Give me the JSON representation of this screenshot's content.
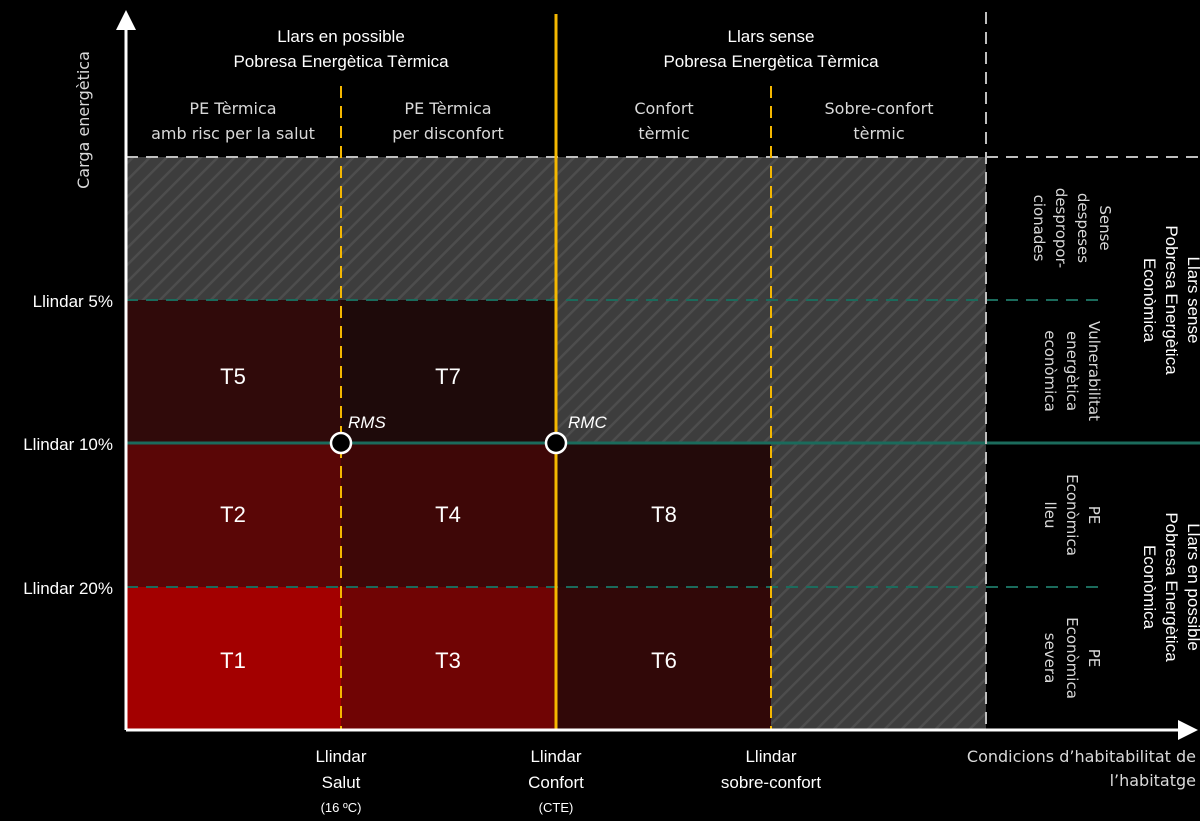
{
  "y_axis_label": "Carga energètica",
  "x_axis_label": [
    "Condicions d’habitabilitat de",
    "l’habitatge"
  ],
  "top_headers": {
    "thermal_poverty": [
      "Llars en possible",
      "Pobresa Energètica Tèrmica"
    ],
    "no_thermal_poverty": [
      "Llars sense",
      "Pobresa Energètica Tèrmica"
    ]
  },
  "column_headers": [
    [
      "PE Tèrmica",
      "amb risc per la salut"
    ],
    [
      "PE Tèrmica",
      "per disconfort"
    ],
    [
      "Confort",
      "tèrmic"
    ],
    [
      "Sobre-confort",
      "tèrmic"
    ]
  ],
  "thresholds_y": [
    "Llindar 5%",
    "Llindar 10%",
    "Llindar 20%"
  ],
  "thresholds_x": [
    [
      "Llindar",
      "Salut",
      "(16 ºC)"
    ],
    [
      "Llindar",
      "Confort",
      "(CTE)"
    ],
    [
      "Llindar",
      "sobre-confort"
    ]
  ],
  "cells": [
    {
      "label": "T5",
      "color": "#300a0a"
    },
    {
      "label": "T7",
      "color": "#1e0a0a"
    },
    {
      "label": "T2",
      "color": "#5a0606"
    },
    {
      "label": "T4",
      "color": "#3e0707"
    },
    {
      "label": "T8",
      "color": "#230a0a"
    },
    {
      "label": "T1",
      "color": "#a30000"
    },
    {
      "label": "T3",
      "color": "#700404"
    },
    {
      "label": "T6",
      "color": "#310808"
    }
  ],
  "points": [
    "RMS",
    "RMC"
  ],
  "right_rows": [
    [
      "Sense",
      "despeses",
      "despropor-",
      "cionades"
    ],
    [
      "Vulnerabilitat",
      "energètica",
      "econòmica"
    ],
    [
      "PE",
      "Econòmica",
      "lleu"
    ],
    [
      "PE",
      "Econòmica",
      "severa"
    ]
  ],
  "right_groups": {
    "no_economic_poverty": [
      "Llars sense",
      "Pobresa Energètica",
      "Econòmica"
    ],
    "economic_poverty": [
      "Llars en possible",
      "Pobresa Energètica",
      "Econòmica"
    ]
  },
  "colors": {
    "gold": "#f5b800",
    "teal": "#1b6b5c",
    "grey_pattern": "#444444",
    "dashed_white": "#bfbfbf"
  }
}
